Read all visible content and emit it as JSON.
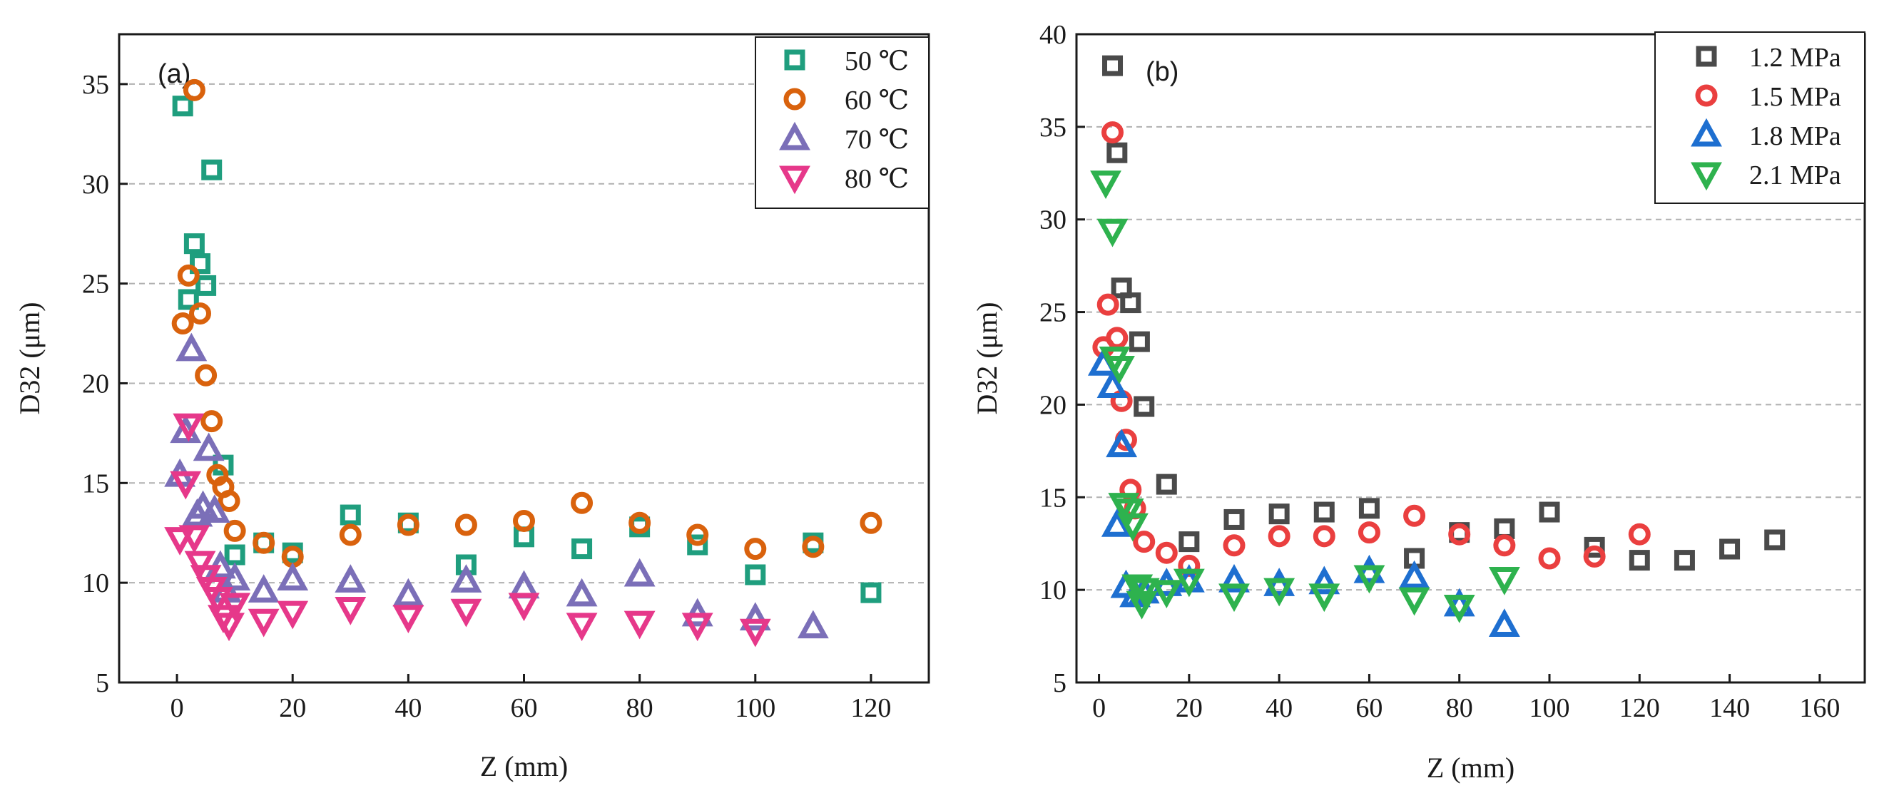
{
  "chart_data": [
    {
      "type": "scatter",
      "panel_label": "(a)",
      "xlabel": "Z (mm)",
      "ylabel": "D32 (μm)",
      "xlim": [
        -10,
        130
      ],
      "ylim": [
        5,
        37.5
      ],
      "xticks": [
        0,
        20,
        40,
        60,
        80,
        100,
        120
      ],
      "yticks": [
        5,
        10,
        15,
        20,
        25,
        30,
        35
      ],
      "grid": "horizontal-dashed",
      "legend_position": "top-right",
      "series": [
        {
          "name": "50 ℃",
          "marker": "square",
          "color": "#1f9e7e",
          "x": [
            1,
            2,
            3,
            4,
            5,
            6,
            8,
            10,
            15,
            20,
            30,
            40,
            50,
            60,
            70,
            80,
            90,
            100,
            110,
            120
          ],
          "y": [
            33.9,
            24.2,
            27.0,
            26.0,
            24.9,
            30.7,
            15.9,
            11.4,
            12.0,
            11.5,
            13.4,
            13.0,
            10.9,
            12.3,
            11.7,
            12.8,
            11.9,
            10.4,
            12.0,
            9.5
          ]
        },
        {
          "name": "60 ℃",
          "marker": "circle",
          "color": "#d9620d",
          "x": [
            1,
            2,
            3,
            4,
            5,
            6,
            7,
            8,
            9,
            10,
            15,
            20,
            30,
            40,
            50,
            60,
            70,
            80,
            90,
            100,
            110,
            120
          ],
          "y": [
            23.0,
            25.4,
            34.7,
            23.5,
            20.4,
            18.1,
            15.4,
            14.8,
            14.1,
            12.6,
            12.0,
            11.3,
            12.4,
            12.9,
            12.9,
            13.1,
            14.0,
            13.0,
            12.4,
            11.7,
            11.8,
            13.0
          ]
        },
        {
          "name": "70 ℃",
          "marker": "triangle-up",
          "color": "#7b6fb8",
          "x": [
            0.5,
            1.5,
            2.5,
            3.5,
            4.5,
            5.5,
            6.5,
            7.5,
            8.5,
            10,
            15,
            20,
            30,
            40,
            50,
            60,
            70,
            80,
            90,
            100,
            110
          ],
          "y": [
            15.4,
            17.6,
            21.7,
            13.4,
            13.8,
            16.7,
            13.6,
            10.8,
            9.6,
            10.2,
            9.6,
            10.2,
            10.1,
            9.4,
            10.1,
            9.8,
            9.4,
            10.4,
            8.4,
            8.2,
            7.8
          ]
        },
        {
          "name": "80 ℃",
          "marker": "triangle-down",
          "color": "#e6388a",
          "x": [
            0.5,
            1.5,
            2,
            3,
            4,
            5,
            6,
            7,
            8,
            9,
            10,
            15,
            20,
            30,
            40,
            50,
            60,
            70,
            80,
            90,
            100
          ],
          "y": [
            12.2,
            15.0,
            17.9,
            12.3,
            11.0,
            10.3,
            9.7,
            9.2,
            8.3,
            7.9,
            8.9,
            8.1,
            8.5,
            8.7,
            8.3,
            8.6,
            8.9,
            7.9,
            8.0,
            7.9,
            7.6
          ]
        }
      ]
    },
    {
      "type": "scatter",
      "panel_label": "(b)",
      "xlabel": "Z (mm)",
      "ylabel": "D32 (μm)",
      "xlim": [
        -5,
        170
      ],
      "ylim": [
        5,
        40
      ],
      "xticks": [
        0,
        20,
        40,
        60,
        80,
        100,
        120,
        140,
        160
      ],
      "yticks": [
        5,
        10,
        15,
        20,
        25,
        30,
        35,
        40
      ],
      "grid": "horizontal-dashed",
      "legend_position": "top-right",
      "series": [
        {
          "name": "1.2 MPa",
          "marker": "square",
          "color": "#4a4a4a",
          "x": [
            3,
            4,
            5,
            7,
            9,
            10,
            15,
            20,
            30,
            40,
            50,
            60,
            70,
            80,
            90,
            100,
            110,
            120,
            130,
            140,
            150
          ],
          "y": [
            38.3,
            33.6,
            26.3,
            25.5,
            23.4,
            19.9,
            15.7,
            12.6,
            13.8,
            14.1,
            14.2,
            14.4,
            11.7,
            13.1,
            13.3,
            14.2,
            12.3,
            11.6,
            11.6,
            12.2,
            12.7
          ]
        },
        {
          "name": "1.5 MPa",
          "marker": "circle",
          "color": "#ea3f3f",
          "x": [
            1,
            2,
            3,
            4,
            5,
            6,
            7,
            8,
            10,
            15,
            20,
            30,
            40,
            50,
            60,
            70,
            80,
            90,
            100,
            110,
            120
          ],
          "y": [
            23.1,
            25.4,
            34.7,
            23.6,
            20.2,
            18.1,
            15.4,
            14.4,
            12.6,
            12.0,
            11.3,
            12.4,
            12.9,
            12.9,
            13.1,
            14.0,
            13.0,
            12.4,
            11.7,
            11.8,
            13.0
          ]
        },
        {
          "name": "1.8 MPa",
          "marker": "triangle-up",
          "color": "#1e6fd0",
          "x": [
            1,
            3,
            4,
            5,
            6,
            8,
            10,
            15,
            20,
            30,
            40,
            50,
            60,
            70,
            80,
            90
          ],
          "y": [
            22.2,
            21.0,
            13.5,
            17.8,
            10.2,
            9.7,
            9.9,
            10.3,
            10.5,
            10.5,
            10.3,
            10.4,
            11.0,
            10.7,
            9.2,
            8.1
          ]
        },
        {
          "name": "2.1 MPa",
          "marker": "triangle-down",
          "color": "#2eb24e",
          "x": [
            1.5,
            3,
            3.5,
            4.5,
            5.5,
            6.5,
            7.5,
            8.5,
            9.5,
            10,
            15,
            20,
            30,
            40,
            50,
            60,
            70,
            80,
            90
          ],
          "y": [
            32.0,
            29.4,
            22.5,
            22.0,
            14.6,
            14.3,
            13.5,
            10.2,
            9.3,
            10.0,
            9.9,
            10.5,
            9.7,
            10.0,
            9.7,
            10.7,
            9.5,
            9.1,
            10.6
          ]
        }
      ]
    }
  ]
}
